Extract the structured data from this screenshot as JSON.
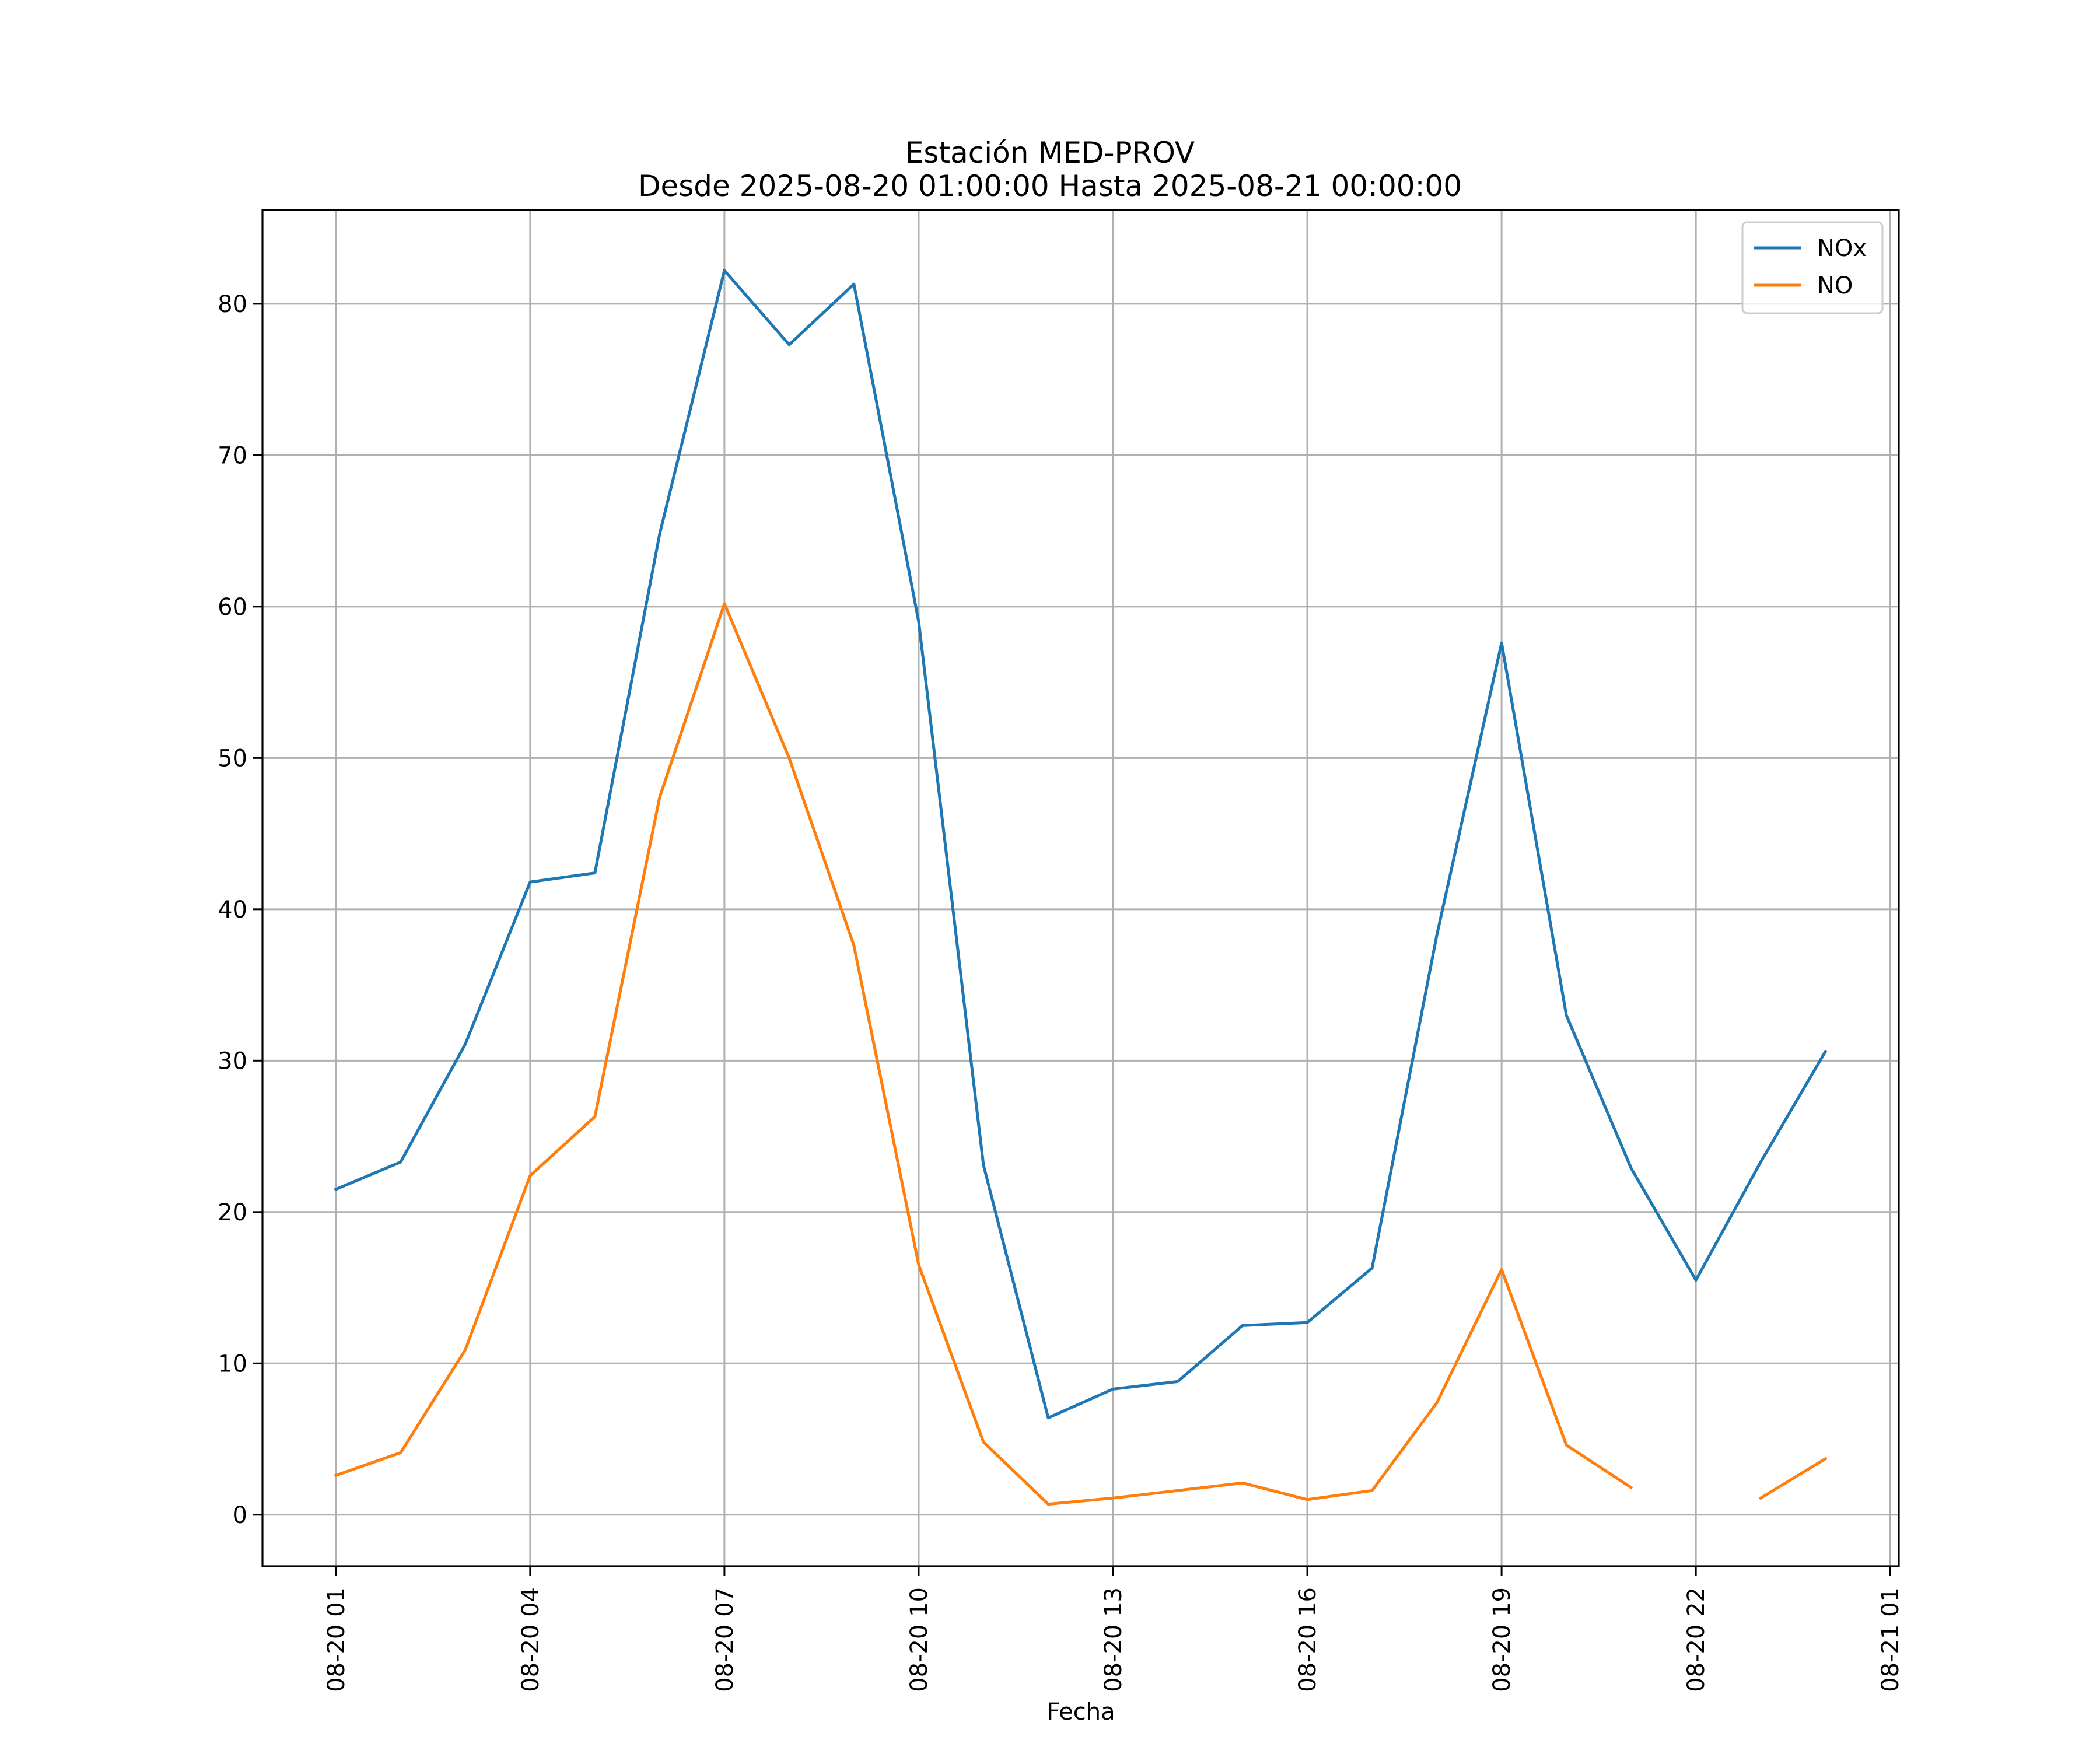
{
  "chart_data": {
    "type": "line",
    "title": "Estación MED-PROV",
    "subtitle": "Desde 2025-08-20 01:00:00 Hasta 2025-08-21 00:00:00",
    "xlabel": "Fecha",
    "ylabel": "",
    "x": [
      "2025-08-20 01:00",
      "2025-08-20 02:00",
      "2025-08-20 03:00",
      "2025-08-20 04:00",
      "2025-08-20 05:00",
      "2025-08-20 06:00",
      "2025-08-20 07:00",
      "2025-08-20 08:00",
      "2025-08-20 09:00",
      "2025-08-20 10:00",
      "2025-08-20 11:00",
      "2025-08-20 12:00",
      "2025-08-20 13:00",
      "2025-08-20 14:00",
      "2025-08-20 15:00",
      "2025-08-20 16:00",
      "2025-08-20 17:00",
      "2025-08-20 18:00",
      "2025-08-20 19:00",
      "2025-08-20 20:00",
      "2025-08-20 21:00",
      "2025-08-20 22:00",
      "2025-08-20 23:00",
      "2025-08-21 00:00"
    ],
    "series": [
      {
        "name": "NOx",
        "color": "#1f77b4",
        "values": [
          21.5,
          23.3,
          31.1,
          41.8,
          42.4,
          64.8,
          82.2,
          77.3,
          81.3,
          59.0,
          23.1,
          6.4,
          8.3,
          8.8,
          12.5,
          12.7,
          16.3,
          38.3,
          57.6,
          33.0,
          22.9,
          15.5,
          23.3,
          30.6
        ]
      },
      {
        "name": "NO",
        "color": "#ff7f0e",
        "values": [
          2.6,
          4.1,
          10.9,
          22.4,
          26.3,
          47.4,
          60.2,
          50.0,
          37.6,
          16.5,
          4.8,
          0.7,
          1.1,
          1.6,
          2.1,
          1.0,
          1.6,
          7.4,
          16.2,
          4.6,
          1.8,
          null,
          1.1,
          3.7
        ]
      }
    ],
    "xticks": [
      "08-20 01",
      "08-20 04",
      "08-20 07",
      "08-20 10",
      "08-20 13",
      "08-20 16",
      "08-20 19",
      "08-20 22",
      "08-21 01"
    ],
    "yticks": [
      "0",
      "10",
      "20",
      "30",
      "40",
      "50",
      "60",
      "70",
      "80"
    ],
    "xlim": [
      "2025-08-19 23:52",
      "2025-08-21 01:08"
    ],
    "ylim": [
      -3.4,
      86.2
    ],
    "grid": true,
    "legend": "top-right"
  }
}
